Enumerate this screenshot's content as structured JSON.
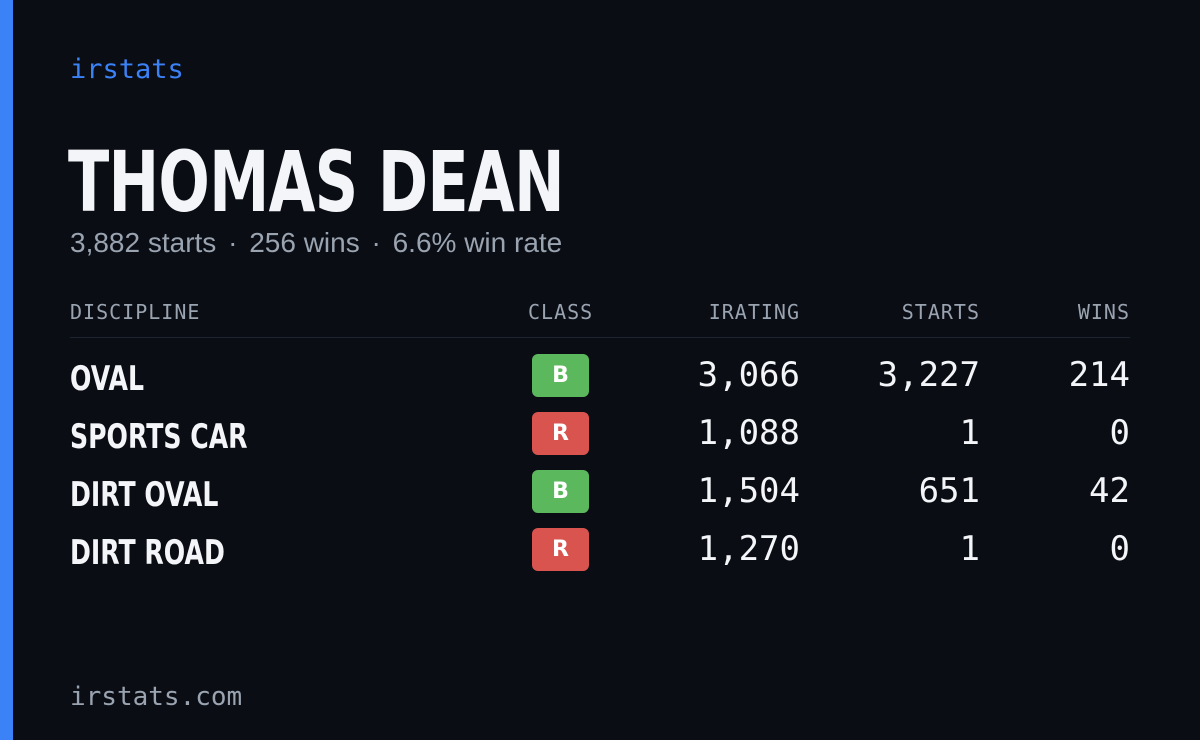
{
  "brand": "irstats",
  "driver": {
    "name": "THOMAS DEAN",
    "starts_text": "3,882 starts",
    "wins_text": "256 wins",
    "win_rate_text": "6.6% win rate",
    "separator": "·"
  },
  "table": {
    "headers": {
      "discipline": "DISCIPLINE",
      "class": "CLASS",
      "irating": "IRATING",
      "starts": "STARTS",
      "wins": "WINS"
    },
    "rows": [
      {
        "discipline": "OVAL",
        "class": "B",
        "class_color": "#5cb85c",
        "irating": "3,066",
        "starts": "3,227",
        "wins": "214"
      },
      {
        "discipline": "SPORTS CAR",
        "class": "R",
        "class_color": "#d9534f",
        "irating": "1,088",
        "starts": "1",
        "wins": "0"
      },
      {
        "discipline": "DIRT OVAL",
        "class": "B",
        "class_color": "#5cb85c",
        "irating": "1,504",
        "starts": "651",
        "wins": "42"
      },
      {
        "discipline": "DIRT ROAD",
        "class": "R",
        "class_color": "#d9534f",
        "irating": "1,270",
        "starts": "1",
        "wins": "0"
      }
    ]
  },
  "footer": "irstats.com",
  "colors": {
    "accent": "#3b82f6",
    "background": "#0a0d14",
    "text": "#f3f5f8",
    "muted": "#9aa3b0"
  }
}
